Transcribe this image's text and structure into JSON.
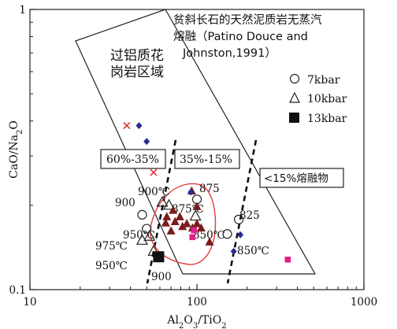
{
  "chart_data": {
    "type": "scatter",
    "title": "贫斜长石的天然泥质岩无蒸汽熔融（Patino Douce and Johnston,1991）",
    "title_lines": [
      "贫斜长石的天然泥质岩无蒸汽",
      "熔融（Patino Douce and",
      "Johnston,1991）"
    ],
    "xlabel": "Al2O3/TiO2",
    "ylabel": "CaO/Na2O",
    "x_scale": "log",
    "y_scale": "log",
    "xlim": [
      10,
      1000
    ],
    "ylim": [
      0.1,
      1
    ],
    "x_ticks": [
      10,
      100,
      1000
    ],
    "x_tick_labels": [
      "10",
      "100",
      "1000"
    ],
    "y_ticks": [
      0.1,
      1
    ],
    "y_tick_labels": [
      "0.1",
      "1"
    ],
    "grid": false,
    "legend_position": "right",
    "legend": [
      {
        "symbol": "open-circle",
        "label": "7kbar"
      },
      {
        "symbol": "open-triangle",
        "label": "10kbar"
      },
      {
        "symbol": "filled-square",
        "label": "13kbar"
      }
    ],
    "field_labels": {
      "peraluminous": [
        "过铝质花",
        "岗岩区域"
      ],
      "ranges": [
        "60%-35%",
        "35%-15%",
        "<15%熔融物"
      ]
    },
    "temperature_labels": [
      "900",
      "900℃",
      "875",
      "875℃",
      "825",
      "850℃",
      "850℃",
      "950℃",
      "975℃",
      "950℃",
      "900"
    ],
    "series": [
      {
        "name": "7kbar",
        "marker": "open-circle",
        "color": "#222222",
        "points": [
          [
            47,
            0.185
          ],
          [
            50,
            0.165
          ],
          [
            100,
            0.21
          ],
          [
            178,
            0.178
          ],
          [
            152,
            0.158
          ]
        ]
      },
      {
        "name": "10kbar",
        "marker": "open-triangle",
        "color": "#222222",
        "points": [
          [
            62,
            0.205
          ],
          [
            68,
            0.2
          ],
          [
            52,
            0.155
          ],
          [
            47,
            0.15
          ],
          [
            55,
            0.137
          ],
          [
            98,
            0.183
          ]
        ]
      },
      {
        "name": "13kbar",
        "marker": "filled-square",
        "color": "#111111",
        "points": [
          [
            59,
            0.131
          ]
        ]
      },
      {
        "marker": "dark-triangle",
        "color": "#7a1c1c",
        "points": [
          [
            72,
            0.192
          ],
          [
            93,
            0.225
          ],
          [
            100,
            0.198
          ],
          [
            66,
            0.182
          ],
          [
            79,
            0.182
          ],
          [
            65,
            0.173
          ],
          [
            74,
            0.175
          ],
          [
            87,
            0.172
          ],
          [
            100,
            0.172
          ],
          [
            82,
            0.168
          ],
          [
            94,
            0.166
          ],
          [
            106,
            0.166
          ],
          [
            70,
            0.162
          ],
          [
            119,
            0.148
          ]
        ]
      },
      {
        "marker": "blue-diamond",
        "color": "#2a2a9a",
        "points": [
          [
            45,
            0.385
          ],
          [
            50,
            0.338
          ],
          [
            92,
            0.223
          ],
          [
            182,
            0.157
          ],
          [
            166,
            0.137
          ]
        ]
      },
      {
        "marker": "red-x",
        "color": "#e03030",
        "points": [
          [
            38,
            0.385
          ],
          [
            55,
            0.262
          ]
        ]
      },
      {
        "marker": "magenta-square",
        "color": "#e0208a",
        "points": [
          [
            94,
            0.154
          ],
          [
            96,
            0.163
          ],
          [
            350,
            0.128
          ]
        ]
      }
    ]
  }
}
